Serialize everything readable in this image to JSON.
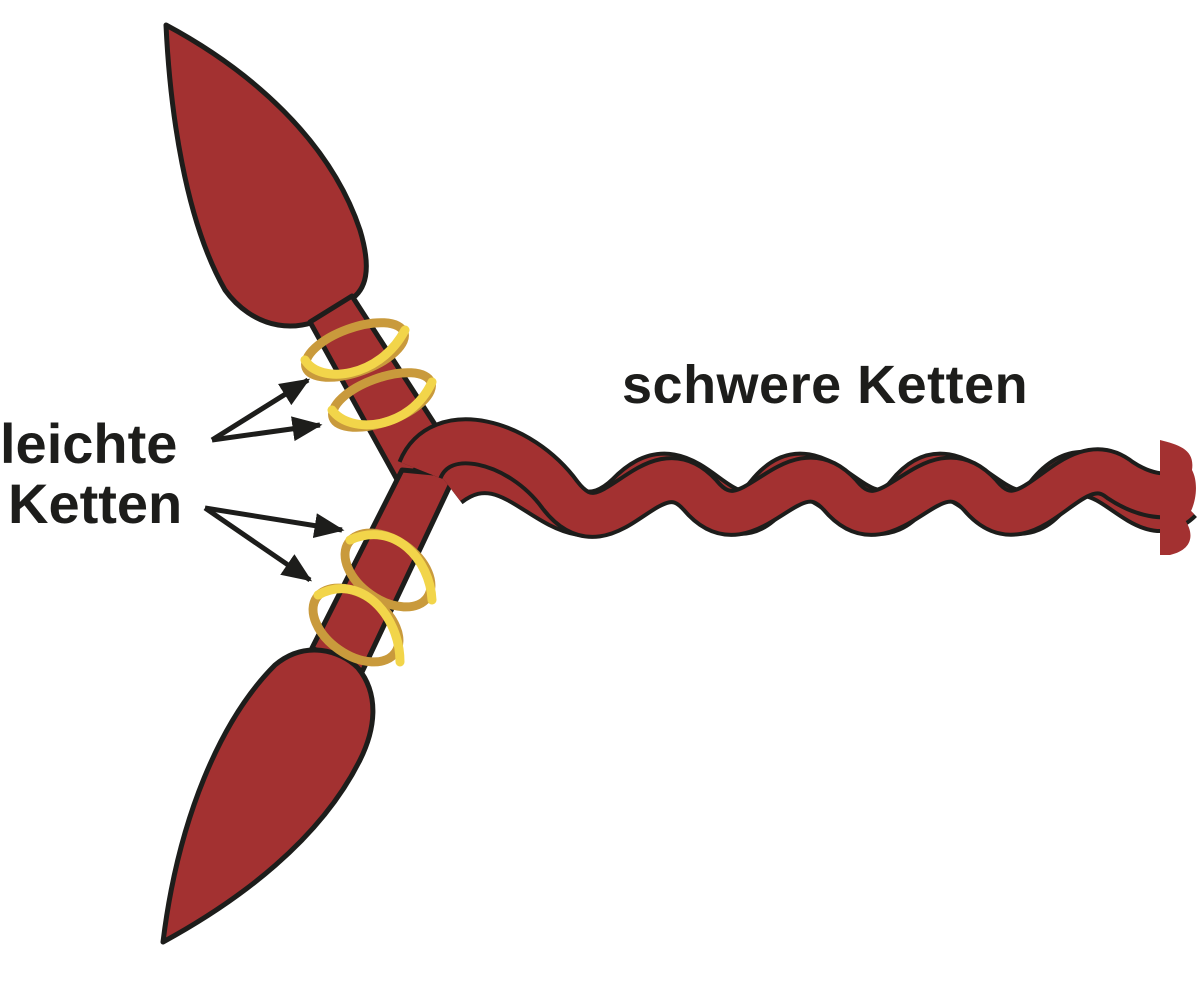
{
  "labels": {
    "heavy_chains": "schwere Ketten",
    "light_chains_line1": "leichte",
    "light_chains_line2": "Ketten"
  },
  "colors": {
    "protein_fill": "#a33131",
    "protein_outline": "#1d1d1b",
    "ring_front": "#f2d54a",
    "ring_back": "#c99a3c",
    "text": "#1d1d1b",
    "background": "#ffffff"
  },
  "icons": {
    "arrow": "arrow-head-icon"
  }
}
